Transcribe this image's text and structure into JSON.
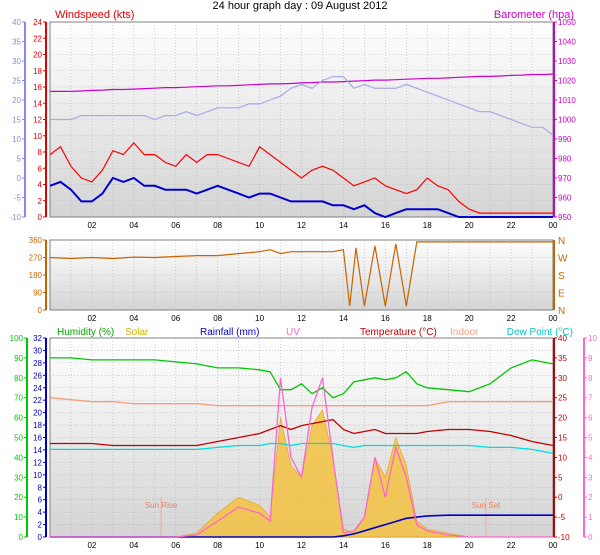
{
  "title": "24 hour graph day : 09 August 2012",
  "x_ticks": [
    "02",
    "04",
    "06",
    "08",
    "10",
    "12",
    "14",
    "16",
    "18",
    "20",
    "22",
    "00"
  ],
  "chart_data": [
    {
      "type": "line",
      "id": "wind-baro",
      "x_hours": [
        0,
        0.5,
        1,
        1.5,
        2,
        2.5,
        3,
        3.5,
        4,
        4.5,
        5,
        5.5,
        6,
        6.5,
        7,
        7.5,
        8,
        8.5,
        9,
        9.5,
        10,
        10.5,
        11,
        11.5,
        12,
        12.5,
        13,
        13.5,
        14,
        14.5,
        15,
        15.5,
        16,
        16.5,
        17,
        17.5,
        18,
        18.5,
        19,
        19.5,
        20,
        20.5,
        21,
        21.5,
        22,
        22.5,
        23,
        23.5,
        24
      ],
      "labels": {
        "left_title": "Windspeed (kts)",
        "right_title": "Barometer (hpa)"
      },
      "left_outer_axis": {
        "ticks": [
          "-10",
          "-5",
          "0",
          "5",
          "10",
          "15",
          "20",
          "25",
          "30",
          "35",
          "40"
        ]
      },
      "left_inner_axis": {
        "ticks": [
          "0",
          "2",
          "4",
          "6",
          "8",
          "10",
          "12",
          "14",
          "16",
          "18",
          "20",
          "22",
          "24"
        ],
        "range": [
          0,
          25
        ]
      },
      "right_axis": {
        "ticks": [
          "950",
          "960",
          "970",
          "980",
          "990",
          "1000",
          "1010",
          "1020",
          "1030",
          "1040",
          "1050"
        ],
        "range": [
          948,
          1052
        ]
      },
      "series": [
        {
          "color": "#cc00cc",
          "axis": "right",
          "values": [
            1015,
            1015,
            1015,
            1015.2,
            1015.5,
            1015.7,
            1016,
            1016,
            1016.2,
            1016.5,
            1016.7,
            1017,
            1017,
            1017.2,
            1017.5,
            1017.7,
            1018,
            1018,
            1018.2,
            1018.5,
            1018.7,
            1019,
            1019,
            1019.2,
            1019.5,
            1019.7,
            1020,
            1020,
            1020.2,
            1020.5,
            1020.7,
            1021,
            1021,
            1021.2,
            1021.5,
            1021.7,
            1022,
            1022,
            1022.2,
            1022.5,
            1022.7,
            1023,
            1023,
            1023.2,
            1023.5,
            1023.7,
            1024,
            1024,
            1024.2
          ]
        },
        {
          "color": "#a8a8ec",
          "axis": "inner",
          "values": [
            12.5,
            12.5,
            12.5,
            13,
            13,
            13,
            13,
            13,
            13,
            13,
            12.5,
            13,
            13,
            13.5,
            13,
            13.5,
            14,
            14,
            14,
            14.5,
            14.5,
            15,
            15.5,
            16.5,
            17,
            16.5,
            17.5,
            18,
            18,
            16.5,
            17,
            16.5,
            16.5,
            16.5,
            17,
            16.5,
            16,
            15.5,
            15,
            14.5,
            14,
            13.5,
            13.5,
            13,
            12.5,
            12,
            11.5,
            11.5,
            10.5
          ]
        },
        {
          "color": "#ff0000",
          "axis": "inner",
          "values": [
            8,
            9,
            6.5,
            5,
            4.5,
            6,
            8.5,
            8,
            9.5,
            8,
            8,
            7,
            6.5,
            8,
            7,
            8,
            8,
            7.5,
            7,
            6.5,
            9,
            8,
            7,
            6,
            5,
            6,
            6.5,
            6,
            5,
            4,
            4.5,
            5,
            4,
            3.5,
            3,
            3.5,
            5,
            4,
            3.5,
            2,
            1,
            0.5,
            0.5,
            0.5,
            0.5,
            0.5,
            0.5,
            0.5,
            0.5
          ]
        },
        {
          "color": "#0000cc",
          "axis": "inner",
          "values": [
            4,
            4.5,
            3.5,
            2,
            2,
            3,
            5,
            4.5,
            5,
            4,
            4,
            3.5,
            3.5,
            3.5,
            3,
            3.5,
            4,
            3.5,
            3,
            2.5,
            3,
            3,
            2.5,
            2,
            2,
            2,
            2,
            1.5,
            1.5,
            1,
            1.5,
            0.5,
            0,
            0.5,
            1,
            1,
            1,
            1,
            0.5,
            0,
            0,
            0,
            0,
            0,
            0,
            0,
            0,
            0,
            0
          ]
        }
      ]
    },
    {
      "type": "scatter",
      "id": "wind-direction",
      "left_axis": {
        "ticks": [
          "0",
          "90",
          "180",
          "270",
          "360"
        ],
        "range": [
          0,
          360
        ]
      },
      "right_axis": {
        "ticks": [
          "N",
          "E",
          "S",
          "W",
          "N"
        ]
      },
      "series": [
        {
          "color": "#c86400",
          "x_hours": [
            0,
            1,
            2,
            3,
            4,
            5,
            6,
            7,
            8,
            9,
            10,
            10.5,
            11,
            11.5,
            12,
            13,
            13.5,
            14,
            14.3,
            14.6,
            15,
            15.5,
            16,
            16.5,
            17,
            17.5,
            18,
            19,
            20,
            21,
            22,
            23,
            24
          ],
          "values": [
            270,
            265,
            270,
            265,
            272,
            270,
            275,
            280,
            280,
            290,
            300,
            310,
            290,
            300,
            300,
            300,
            300,
            310,
            20,
            320,
            20,
            330,
            20,
            340,
            20,
            350,
            350,
            350,
            350,
            350,
            350,
            350,
            350
          ]
        }
      ]
    },
    {
      "type": "area",
      "id": "temp-hum-solar",
      "labels": {
        "humidity": "Humidity (%)",
        "solar": "Solar",
        "rainfall": "Rainfall (mm)",
        "uv": "UV",
        "temperature": "Temperature (°C)",
        "indoor": "Indoor",
        "dewpoint": "Dew Point (°C)"
      },
      "annotations": [
        "Sun Rise",
        "Sun Set"
      ],
      "hum_axis": {
        "ticks": [
          "0",
          "10",
          "20",
          "30",
          "40",
          "50",
          "60",
          "70",
          "80",
          "90",
          "100"
        ],
        "range": [
          0,
          100
        ]
      },
      "rain_axis": {
        "ticks": [
          "0",
          "2",
          "4",
          "6",
          "8",
          "10",
          "12",
          "14",
          "16",
          "18",
          "20",
          "22",
          "24",
          "26",
          "28",
          "30",
          "32"
        ],
        "range": [
          0,
          32
        ]
      },
      "temp_axis": {
        "ticks": [
          "-10",
          "-5",
          "0",
          "5",
          "10",
          "15",
          "20",
          "25",
          "30",
          "35",
          "40"
        ],
        "range": [
          -10,
          40
        ]
      },
      "uv_axis": {
        "ticks": [
          "0",
          "1",
          "2",
          "3",
          "4",
          "5",
          "6",
          "7",
          "8",
          "9",
          "10"
        ],
        "range": [
          0,
          10
        ]
      },
      "x_hours": [
        0,
        1,
        2,
        3,
        4,
        5,
        6,
        7,
        8,
        9,
        10,
        10.5,
        11,
        11.5,
        12,
        12.5,
        13,
        13.5,
        14,
        14.5,
        15,
        15.5,
        16,
        16.5,
        17,
        17.5,
        18,
        19,
        20,
        21,
        22,
        23,
        24
      ],
      "series": [
        {
          "name": "Humidity (%)",
          "color": "#00c800",
          "axis": "hum",
          "values": [
            90,
            90,
            89,
            89,
            89,
            89,
            88,
            87,
            85,
            85,
            84,
            83,
            74,
            74,
            77,
            72,
            75,
            70,
            72,
            78,
            79,
            80,
            79,
            80,
            83,
            77,
            75,
            74,
            73,
            77,
            85,
            89,
            87
          ]
        },
        {
          "name": "Indoor",
          "color": "#f4a080",
          "axis": "temp",
          "values": [
            25,
            24.5,
            24,
            24,
            23.5,
            23.5,
            23.5,
            23.5,
            23,
            23,
            23,
            23,
            23,
            23,
            23,
            23,
            23,
            23,
            23,
            23,
            23,
            23,
            23,
            23,
            23,
            23,
            23,
            24,
            24,
            24,
            24,
            24,
            24
          ]
        },
        {
          "name": "Temperature (°C)",
          "color": "#c00000",
          "axis": "temp",
          "values": [
            13.5,
            13.5,
            13.5,
            13,
            13,
            13,
            13,
            13,
            14,
            15,
            16,
            17,
            18,
            17,
            18,
            18.5,
            19,
            19.5,
            17,
            16,
            16.5,
            17,
            16,
            16,
            16,
            16,
            16.5,
            17,
            17,
            16.5,
            15.5,
            14,
            13
          ]
        },
        {
          "name": "Dew Point (°C)",
          "color": "#00dcdc",
          "axis": "temp",
          "values": [
            12,
            12,
            12,
            12,
            12,
            12,
            12,
            12,
            12.5,
            13,
            13,
            13.5,
            13.5,
            13,
            13.5,
            13.5,
            13.5,
            13.5,
            13,
            12.5,
            13,
            13,
            13,
            13,
            13,
            13,
            13,
            13,
            13,
            12.5,
            12.5,
            12,
            11
          ]
        },
        {
          "name": "Rainfall (mm)",
          "color": "#0000c8",
          "axis": "rain",
          "values": [
            0,
            0,
            0,
            0,
            0,
            0,
            0,
            0,
            0,
            0,
            0,
            0,
            0,
            0,
            0,
            0,
            0,
            0,
            0.2,
            0.5,
            1,
            1.5,
            2,
            2.5,
            3,
            3.2,
            3.4,
            3.5,
            3.5,
            3.5,
            3.5,
            3.5,
            3.5
          ]
        },
        {
          "name": "Solar",
          "color": "#f5c242",
          "axis": "temp",
          "values": [
            -10,
            -10,
            -10,
            -10,
            -10,
            -10,
            -10,
            -9,
            -4,
            0,
            -2,
            -5,
            20,
            8,
            5,
            18,
            22,
            10,
            -8,
            -9,
            -5,
            10,
            5,
            15,
            8,
            -6,
            -8,
            -9,
            -10,
            -10,
            -10,
            -10,
            -10
          ]
        },
        {
          "name": "UV",
          "color": "#ff66cc",
          "axis": "uv",
          "values": [
            0,
            0,
            0,
            0,
            0,
            0,
            0,
            0.1,
            0.8,
            1.5,
            1.2,
            0.8,
            8,
            4,
            3,
            6.5,
            8,
            4,
            0.2,
            0.3,
            1,
            4,
            2,
            4.5,
            3,
            0.6,
            0.3,
            0.1,
            0,
            0,
            0,
            0,
            0
          ]
        }
      ]
    }
  ]
}
